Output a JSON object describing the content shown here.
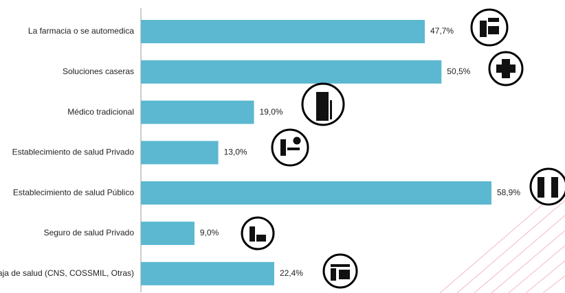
{
  "chart_data": {
    "type": "bar",
    "orientation": "horizontal",
    "categories": [
      "La farmacia o se automedica",
      "Soluciones caseras",
      "Médico tradicional",
      "Establecimiento de salud Privado",
      "Establecimiento de salud Público",
      "Seguro de salud Privado",
      "Caja de salud (CNS, COSSMIL, Otras)"
    ],
    "values": [
      47.7,
      50.5,
      19.0,
      13.0,
      58.9,
      9.0,
      22.4
    ],
    "value_labels": [
      "47,7%",
      "50,5%",
      "19,0%",
      "13,0%",
      "58,9%",
      "9,0%",
      "22,4%"
    ],
    "color": "#5bb8d0"
  }
}
